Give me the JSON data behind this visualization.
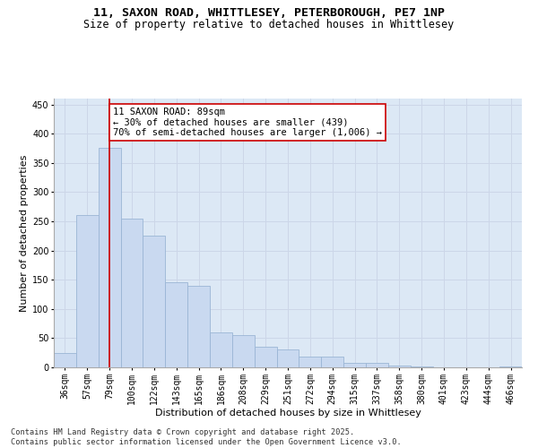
{
  "title_line1": "11, SAXON ROAD, WHITTLESEY, PETERBOROUGH, PE7 1NP",
  "title_line2": "Size of property relative to detached houses in Whittlesey",
  "xlabel": "Distribution of detached houses by size in Whittlesey",
  "ylabel": "Number of detached properties",
  "categories": [
    "36sqm",
    "57sqm",
    "79sqm",
    "100sqm",
    "122sqm",
    "143sqm",
    "165sqm",
    "186sqm",
    "208sqm",
    "229sqm",
    "251sqm",
    "272sqm",
    "294sqm",
    "315sqm",
    "337sqm",
    "358sqm",
    "380sqm",
    "401sqm",
    "423sqm",
    "444sqm",
    "466sqm"
  ],
  "values": [
    25,
    260,
    375,
    255,
    225,
    145,
    140,
    60,
    55,
    35,
    30,
    18,
    18,
    7,
    7,
    3,
    1,
    0,
    0,
    0,
    1
  ],
  "bar_color": "#c9d9f0",
  "bar_edge_color": "#9ab5d5",
  "bar_linewidth": 0.6,
  "vline_x": 2,
  "vline_color": "#cc0000",
  "vline_linewidth": 1.2,
  "annotation_text": "11 SAXON ROAD: 89sqm\n← 30% of detached houses are smaller (439)\n70% of semi-detached houses are larger (1,006) →",
  "annotation_box_color": "#ffffff",
  "annotation_box_edge_color": "#cc0000",
  "grid_color": "#ccd6e8",
  "background_color": "#dce8f5",
  "ylim": [
    0,
    460
  ],
  "yticks": [
    0,
    50,
    100,
    150,
    200,
    250,
    300,
    350,
    400,
    450
  ],
  "footnote": "Contains HM Land Registry data © Crown copyright and database right 2025.\nContains public sector information licensed under the Open Government Licence v3.0.",
  "title_fontsize": 9.5,
  "subtitle_fontsize": 8.5,
  "axis_label_fontsize": 8,
  "tick_fontsize": 7,
  "annotation_fontsize": 7.5,
  "footnote_fontsize": 6.2
}
